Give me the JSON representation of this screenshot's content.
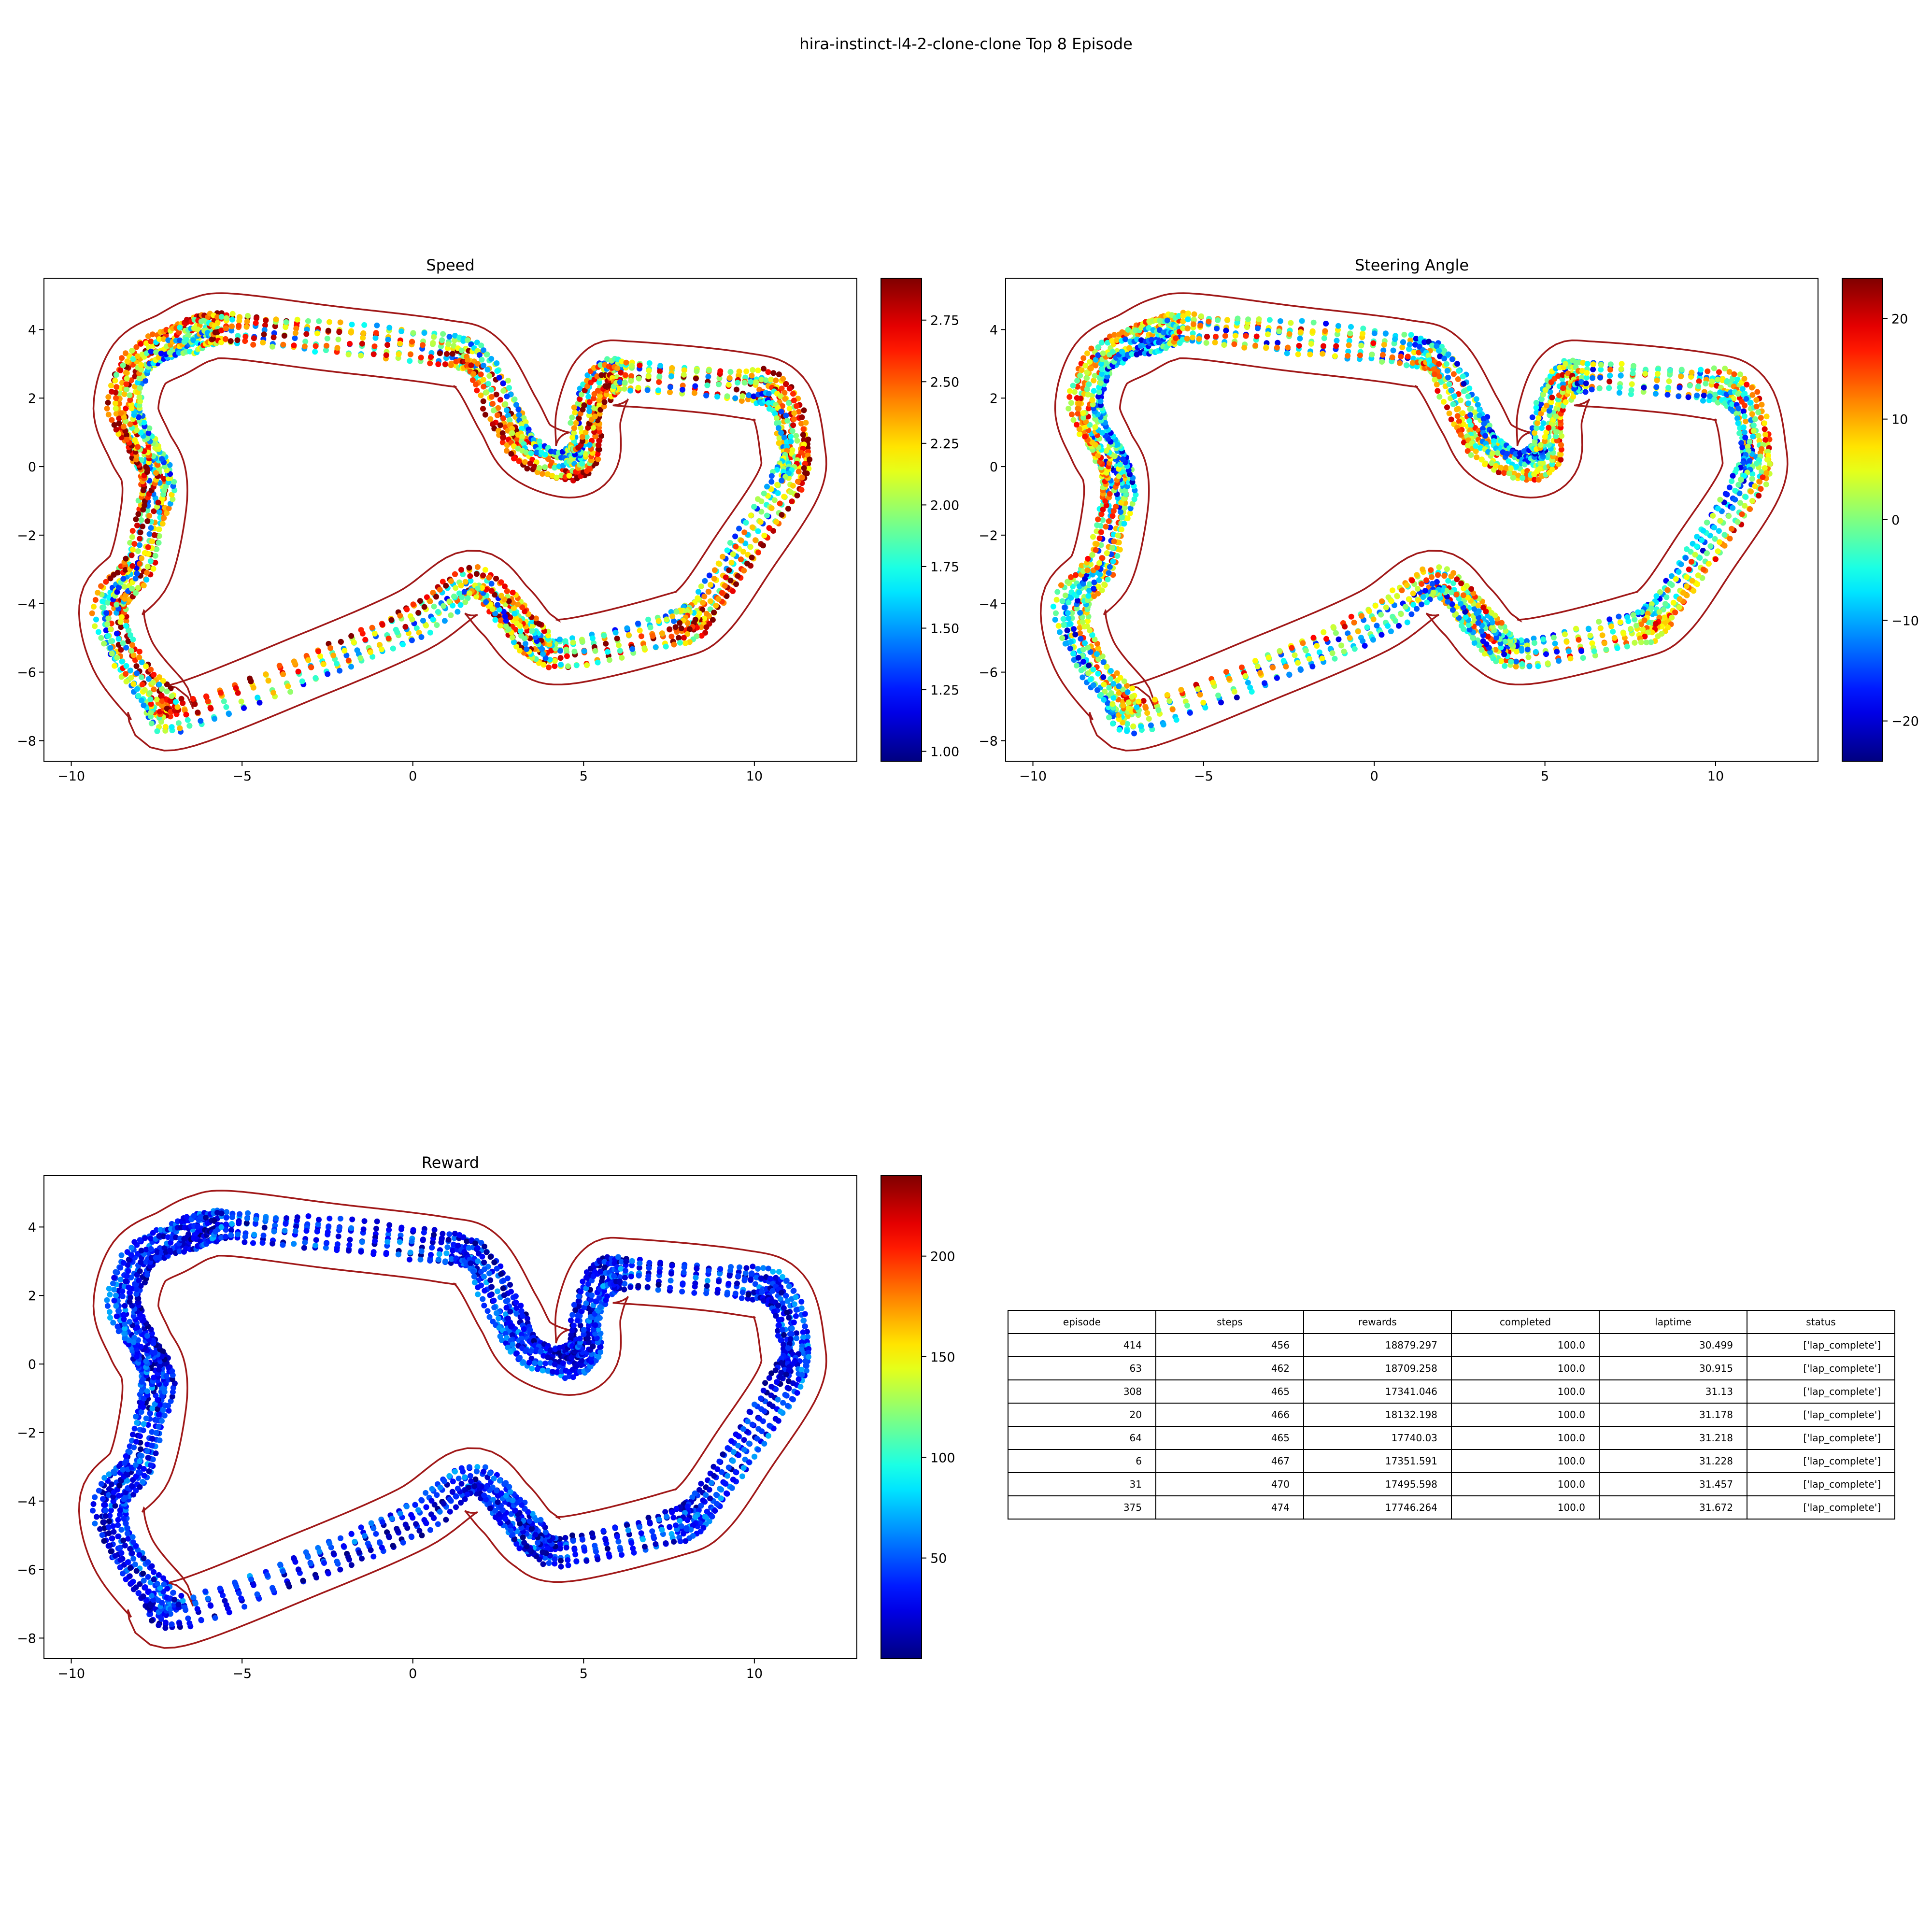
{
  "suptitle": "hira-instinct-l4-2-clone-clone Top 8 Episode",
  "colors": {
    "track_border": "#a01818",
    "axes": "#000000",
    "colormap": "jet"
  },
  "chart_data": [
    {
      "type": "scatter",
      "title": "Speed",
      "xlim": [
        -10.8,
        13.0
      ],
      "ylim": [
        -8.6,
        5.5
      ],
      "xticks": [
        -10,
        -5,
        0,
        5,
        10
      ],
      "yticks": [
        -8,
        -6,
        -4,
        -2,
        0,
        2,
        4
      ],
      "colorbar": {
        "min": 0.96,
        "max": 2.92,
        "ticks": [
          1.0,
          1.25,
          1.5,
          1.75,
          2.0,
          2.25,
          2.5,
          2.75
        ],
        "tick_labels": [
          "1.00",
          "1.25",
          "1.50",
          "1.75",
          "2.00",
          "2.25",
          "2.50",
          "2.75"
        ]
      },
      "value_profile": {
        "base": 2.2,
        "amplitude": 0.55,
        "noise": 0.5
      },
      "grid": false,
      "legend": "none"
    },
    {
      "type": "scatter",
      "title": "Steering Angle",
      "xlim": [
        -10.8,
        13.0
      ],
      "ylim": [
        -8.6,
        5.5
      ],
      "xticks": [
        -10,
        -5,
        0,
        5,
        10
      ],
      "yticks": [
        -8,
        -6,
        -4,
        -2,
        0,
        2,
        4
      ],
      "colorbar": {
        "min": -24,
        "max": 24,
        "ticks": [
          -20,
          -10,
          0,
          10,
          20
        ],
        "tick_labels": [
          "−20",
          "−10",
          "0",
          "10",
          "20"
        ]
      },
      "value_profile": {
        "base": 0,
        "amplitude": 12,
        "noise": 10
      },
      "grid": false,
      "legend": "none"
    },
    {
      "type": "scatter",
      "title": "Reward",
      "xlim": [
        -10.8,
        13.0
      ],
      "ylim": [
        -8.6,
        5.5
      ],
      "xticks": [
        -10,
        -5,
        0,
        5,
        10
      ],
      "yticks": [
        -8,
        -6,
        -4,
        -2,
        0,
        2,
        4
      ],
      "colorbar": {
        "min": 0,
        "max": 240,
        "ticks": [
          50,
          100,
          150,
          200
        ],
        "tick_labels": [
          "50",
          "100",
          "150",
          "200"
        ]
      },
      "value_profile": {
        "base": 35,
        "amplitude": 15,
        "noise": 25
      },
      "grid": false,
      "legend": "none"
    }
  ],
  "track_centerline": [
    [
      -5.3,
      4.1
    ],
    [
      -2.5,
      3.75
    ],
    [
      0.8,
      3.35
    ],
    [
      1.9,
      3.0
    ],
    [
      2.8,
      1.5
    ],
    [
      3.4,
      0.5
    ],
    [
      4.5,
      0.05
    ],
    [
      5.1,
      0.35
    ],
    [
      5.15,
      1.5
    ],
    [
      5.6,
      2.6
    ],
    [
      6.4,
      2.7
    ],
    [
      9.5,
      2.4
    ],
    [
      10.7,
      2.0
    ],
    [
      11.1,
      0.6
    ],
    [
      11.0,
      -0.5
    ],
    [
      9.7,
      -2.5
    ],
    [
      8.5,
      -4.2
    ],
    [
      7.5,
      -4.7
    ],
    [
      4.5,
      -5.4
    ],
    [
      3.5,
      -5.1
    ],
    [
      2.7,
      -4.2
    ],
    [
      1.7,
      -3.4
    ],
    [
      0.0,
      -4.5
    ],
    [
      -3.0,
      -5.8
    ],
    [
      -6.9,
      -7.3
    ],
    [
      -7.5,
      -6.8
    ],
    [
      -8.5,
      -5.5
    ],
    [
      -8.8,
      -4.0
    ],
    [
      -8.0,
      -3.0
    ],
    [
      -7.6,
      -1.3
    ],
    [
      -7.6,
      -0.2
    ],
    [
      -8.0,
      0.6
    ],
    [
      -8.4,
      1.7
    ],
    [
      -8.0,
      3.0
    ],
    [
      -7.0,
      3.6
    ],
    [
      -6.2,
      4.0
    ]
  ],
  "track_half_width": 0.95,
  "episode_count": 8,
  "table": {
    "columns": [
      "episode",
      "steps",
      "rewards",
      "completed",
      "laptime",
      "status"
    ],
    "rows": [
      [
        "414",
        "456",
        "18879.297",
        "100.0",
        "30.499",
        "['lap_complete']"
      ],
      [
        "63",
        "462",
        "18709.258",
        "100.0",
        "30.915",
        "['lap_complete']"
      ],
      [
        "308",
        "465",
        "17341.046",
        "100.0",
        "31.13",
        "['lap_complete']"
      ],
      [
        "20",
        "466",
        "18132.198",
        "100.0",
        "31.178",
        "['lap_complete']"
      ],
      [
        "64",
        "465",
        "17740.03",
        "100.0",
        "31.218",
        "['lap_complete']"
      ],
      [
        "6",
        "467",
        "17351.591",
        "100.0",
        "31.228",
        "['lap_complete']"
      ],
      [
        "31",
        "470",
        "17495.598",
        "100.0",
        "31.457",
        "['lap_complete']"
      ],
      [
        "375",
        "474",
        "17746.264",
        "100.0",
        "31.672",
        "['lap_complete']"
      ]
    ]
  }
}
